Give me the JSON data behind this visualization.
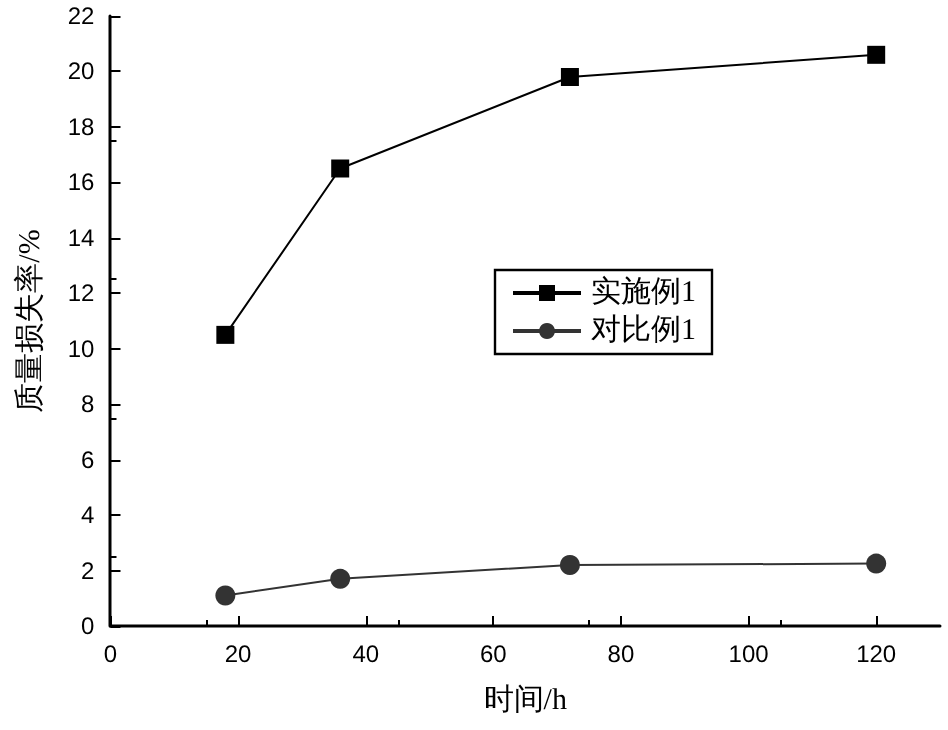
{
  "chart_data": {
    "type": "line",
    "xlabel": "时间/h",
    "ylabel": "质量损失率/%",
    "x": [
      18,
      36,
      72,
      120
    ],
    "series": [
      {
        "name": "实施例1",
        "color": "#000000",
        "marker": "square",
        "values": [
          10.5,
          16.5,
          19.8,
          20.6
        ]
      },
      {
        "name": "对比例1",
        "color": "#333333",
        "marker": "circle",
        "values": [
          1.1,
          1.7,
          2.2,
          2.25
        ]
      }
    ],
    "xlim": [
      0,
      130
    ],
    "xticks": [
      0,
      20,
      40,
      60,
      80,
      100,
      120
    ],
    "ylim": [
      0,
      22
    ],
    "yticks": [
      0,
      2,
      4,
      6,
      8,
      10,
      12,
      14,
      16,
      18,
      20,
      22
    ],
    "grid": false,
    "legend": "right"
  }
}
